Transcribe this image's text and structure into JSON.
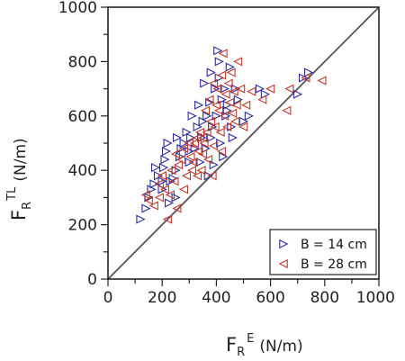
{
  "chart_data": {
    "type": "scatter",
    "xlim": [
      0,
      1000
    ],
    "ylim": [
      0,
      1000
    ],
    "x_ticks": [
      "0",
      "200",
      "400",
      "600",
      "800",
      "1000"
    ],
    "y_ticks": [
      "0",
      "200",
      "400",
      "600",
      "800",
      "1000"
    ],
    "xlabel": {
      "main": "F",
      "sub": "R",
      "sup": "E",
      "unit": "(N/m)"
    },
    "ylabel": {
      "main": "F",
      "sub": "R",
      "sup": "TL",
      "unit": "(N/m)"
    },
    "reference_line": {
      "from": [
        0,
        0
      ],
      "to": [
        1000,
        1000
      ],
      "color": "#555555"
    },
    "legend_position": "bottom-right",
    "series": [
      {
        "name": "B = 14 cm",
        "marker": "triangle-right",
        "color": "#2a2aa0",
        "points": [
          [
            120,
            220
          ],
          [
            140,
            260
          ],
          [
            150,
            300
          ],
          [
            160,
            330
          ],
          [
            170,
            350
          ],
          [
            175,
            410
          ],
          [
            185,
            380
          ],
          [
            200,
            330
          ],
          [
            205,
            410
          ],
          [
            210,
            440
          ],
          [
            215,
            470
          ],
          [
            220,
            500
          ],
          [
            225,
            280
          ],
          [
            230,
            360
          ],
          [
            240,
            370
          ],
          [
            250,
            400
          ],
          [
            255,
            520
          ],
          [
            265,
            450
          ],
          [
            270,
            480
          ],
          [
            280,
            500
          ],
          [
            290,
            540
          ],
          [
            300,
            470
          ],
          [
            305,
            520
          ],
          [
            310,
            600
          ],
          [
            320,
            480
          ],
          [
            330,
            560
          ],
          [
            335,
            640
          ],
          [
            340,
            430
          ],
          [
            345,
            520
          ],
          [
            350,
            580
          ],
          [
            355,
            720
          ],
          [
            360,
            480
          ],
          [
            365,
            600
          ],
          [
            370,
            380
          ],
          [
            375,
            650
          ],
          [
            380,
            760
          ],
          [
            385,
            560
          ],
          [
            390,
            420
          ],
          [
            395,
            700
          ],
          [
            400,
            600
          ],
          [
            405,
            840
          ],
          [
            410,
            740
          ],
          [
            415,
            500
          ],
          [
            420,
            660
          ],
          [
            425,
            450
          ],
          [
            430,
            700
          ],
          [
            435,
            600
          ],
          [
            440,
            640
          ],
          [
            450,
            780
          ],
          [
            455,
            560
          ],
          [
            460,
            520
          ],
          [
            470,
            700
          ],
          [
            480,
            660
          ],
          [
            500,
            580
          ],
          [
            520,
            600
          ],
          [
            560,
            700
          ],
          [
            580,
            680
          ],
          [
            700,
            680
          ],
          [
            720,
            740
          ],
          [
            740,
            760
          ],
          [
            440,
            620
          ],
          [
            410,
            800
          ],
          [
            380,
            520
          ],
          [
            300,
            430
          ],
          [
            250,
            300
          ],
          [
            200,
            360
          ]
        ]
      },
      {
        "name": "B = 28 cm",
        "marker": "triangle-left",
        "color": "#c0392b",
        "points": [
          [
            140,
            310
          ],
          [
            150,
            290
          ],
          [
            170,
            270
          ],
          [
            190,
            300
          ],
          [
            200,
            380
          ],
          [
            210,
            330
          ],
          [
            220,
            220
          ],
          [
            235,
            400
          ],
          [
            245,
            360
          ],
          [
            255,
            260
          ],
          [
            260,
            420
          ],
          [
            270,
            440
          ],
          [
            280,
            480
          ],
          [
            290,
            380
          ],
          [
            300,
            500
          ],
          [
            305,
            450
          ],
          [
            315,
            430
          ],
          [
            320,
            500
          ],
          [
            330,
            520
          ],
          [
            335,
            470
          ],
          [
            340,
            540
          ],
          [
            345,
            400
          ],
          [
            350,
            460
          ],
          [
            355,
            500
          ],
          [
            360,
            620
          ],
          [
            365,
            540
          ],
          [
            370,
            440
          ],
          [
            375,
            660
          ],
          [
            380,
            580
          ],
          [
            385,
            380
          ],
          [
            390,
            490
          ],
          [
            395,
            560
          ],
          [
            400,
            640
          ],
          [
            405,
            700
          ],
          [
            410,
            620
          ],
          [
            415,
            540
          ],
          [
            420,
            750
          ],
          [
            425,
            830
          ],
          [
            430,
            600
          ],
          [
            435,
            680
          ],
          [
            440,
            560
          ],
          [
            445,
            720
          ],
          [
            450,
            650
          ],
          [
            455,
            760
          ],
          [
            460,
            610
          ],
          [
            465,
            690
          ],
          [
            470,
            580
          ],
          [
            475,
            640
          ],
          [
            480,
            800
          ],
          [
            490,
            700
          ],
          [
            500,
            560
          ],
          [
            510,
            640
          ],
          [
            530,
            690
          ],
          [
            570,
            660
          ],
          [
            600,
            700
          ],
          [
            660,
            620
          ],
          [
            670,
            700
          ],
          [
            730,
            740
          ],
          [
            790,
            730
          ],
          [
            250,
            460
          ],
          [
            280,
            330
          ],
          [
            310,
            400
          ],
          [
            230,
            310
          ],
          [
            190,
            350
          ],
          [
            350,
            520
          ],
          [
            330,
            380
          ],
          [
            390,
            720
          ],
          [
            420,
            470
          ]
        ]
      }
    ]
  }
}
